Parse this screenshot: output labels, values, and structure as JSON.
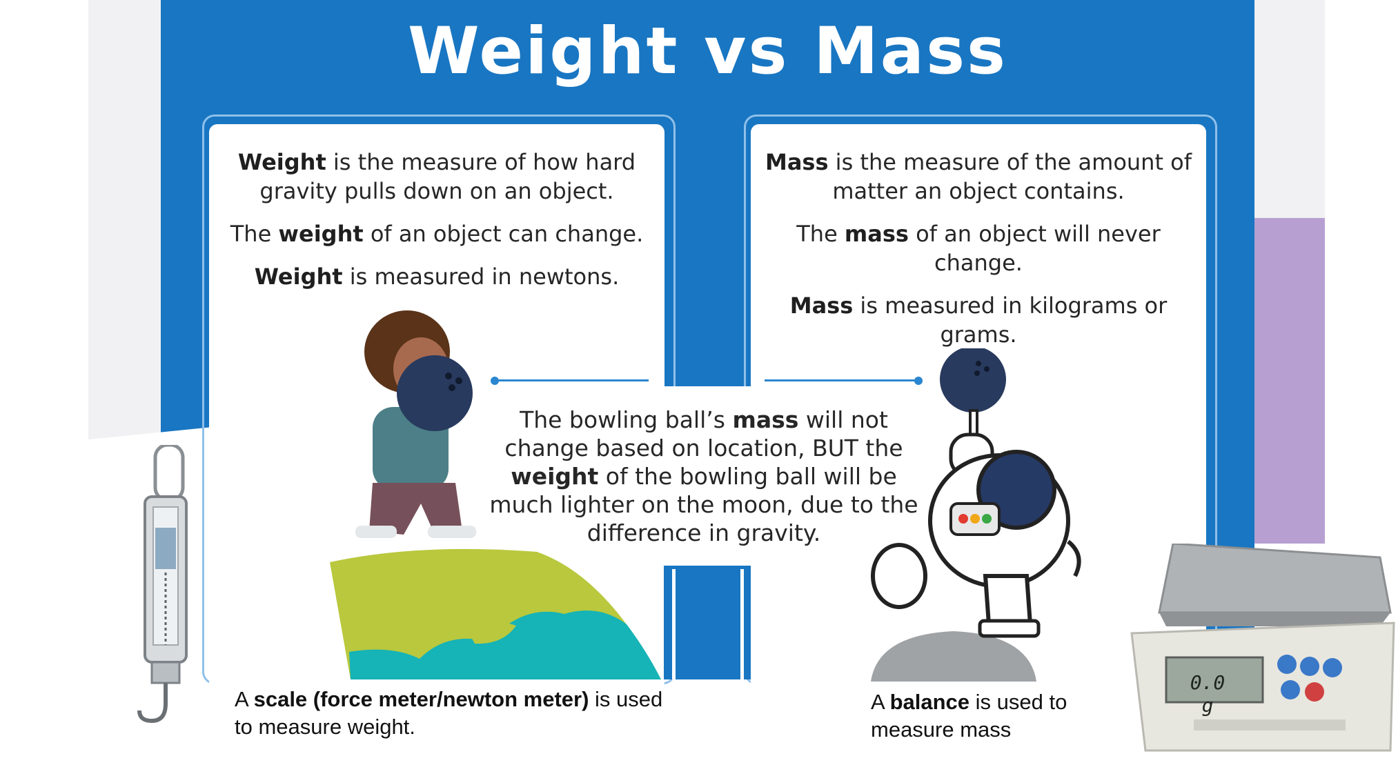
{
  "title": "Weight vs Mass",
  "weight_card": {
    "line1_bold": "Weight",
    "line1_rest": " is the measure of how hard gravity pulls down on an object.",
    "line2_pre": "The ",
    "line2_bold": "weight",
    "line2_post": " of an object can change.",
    "line3_bold": "Weight",
    "line3_rest": " is measured in newtons."
  },
  "mass_card": {
    "line1_bold": "Mass",
    "line1_rest": " is the measure of the amount of matter an object contains.",
    "line2_pre": "The ",
    "line2_bold": "mass",
    "line2_post": " of an object will never change.",
    "line3_bold": "Mass",
    "line3_rest": " is measured in kilograms or grams."
  },
  "center": {
    "p1": "The bowling ball’s ",
    "b1": "mass",
    "p2": " will not change based on location, BUT the ",
    "b2": "weight",
    "p3": " of the bowling ball will be much lighter on the moon, due to the difference in gravity."
  },
  "scale_caption": {
    "pre": "A ",
    "bold": "scale (force meter/newton meter)",
    "post": " is used  to measure weight."
  },
  "balance_caption": {
    "pre": "A ",
    "bold": "balance",
    "post": " is used to measure mass"
  },
  "balance_display": "0.0 g",
  "colors": {
    "blue": "#1976c2",
    "purple": "#b7a0d1",
    "card_border": "#8fc0ea"
  }
}
